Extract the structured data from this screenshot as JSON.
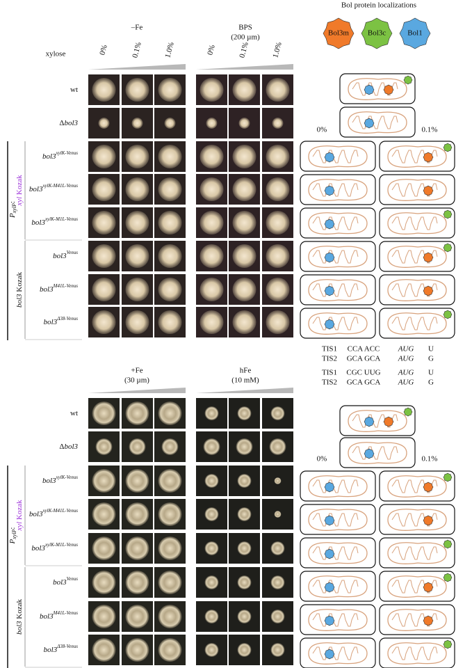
{
  "legend": {
    "title": "Bol protein localizations",
    "proteins": [
      {
        "name": "Bol3m",
        "color": "#f07a2a"
      },
      {
        "name": "Bol3c",
        "color": "#7cc243"
      },
      {
        "name": "Bol1",
        "color": "#5aa8e0"
      }
    ]
  },
  "promoter": {
    "symbol": "P",
    "subscript": "xylP",
    "suffix": ":"
  },
  "groups": [
    {
      "gene": "xyl",
      "word": " Kozak",
      "color": "#9b30d9"
    },
    {
      "gene": "bol3",
      "word": " Kozak",
      "color": "#111111"
    }
  ],
  "panels": [
    {
      "conditions": [
        {
          "label": "–Fe"
        },
        {
          "label": "BPS",
          "note": "(200 µm)"
        }
      ],
      "xylose_label": "xylose",
      "xylose_levels": [
        "0%",
        "0.1%",
        "1.0%"
      ],
      "rows": [
        {
          "name": "wt"
        },
        {
          "prefix": "Δ",
          "name": "bol3"
        },
        {
          "name": "bol3",
          "sup": "xylK-Venus"
        },
        {
          "name": "bol3",
          "sup": "xylK-M41L-Venus"
        },
        {
          "name": "bol3",
          "sup": "xylK-M1L-Venus"
        },
        {
          "name": "bol3",
          "sup": "Venus"
        },
        {
          "name": "bol3",
          "sup": "M41L-Venus"
        },
        {
          "name": "bol3",
          "sup": "Δ38-Venus"
        }
      ],
      "diagram_labels": [
        "0%",
        "0.1%"
      ],
      "tis": [
        [
          "TIS1",
          "CCA ACC",
          "AUG",
          "U"
        ],
        [
          "TIS2",
          "GCA GCA",
          "AUG",
          "G"
        ]
      ]
    },
    {
      "conditions": [
        {
          "label": "+Fe",
          "note": "(30 µm)"
        },
        {
          "label": "hFe",
          "note": "(10 mM)"
        }
      ],
      "rows": [
        {
          "name": "wt"
        },
        {
          "prefix": "Δ",
          "name": "bol3"
        },
        {
          "name": "bol3",
          "sup": "xylK-Venus"
        },
        {
          "name": "bol3",
          "sup": "xylK-M41L-Venus"
        },
        {
          "name": "bol3",
          "sup": "xylK-M1L-Venus"
        },
        {
          "name": "bol3",
          "sup": "Venus"
        },
        {
          "name": "bol3",
          "sup": "M41L-Venus"
        },
        {
          "name": "bol3",
          "sup": "Δ38-Venus"
        }
      ],
      "diagram_labels": [
        "0%",
        "0.1%"
      ],
      "tis": [
        [
          "TIS1",
          "CGC UUG",
          "AUG",
          "U"
        ],
        [
          "TIS2",
          "GCA GCA",
          "AUG",
          "G"
        ]
      ]
    }
  ]
}
